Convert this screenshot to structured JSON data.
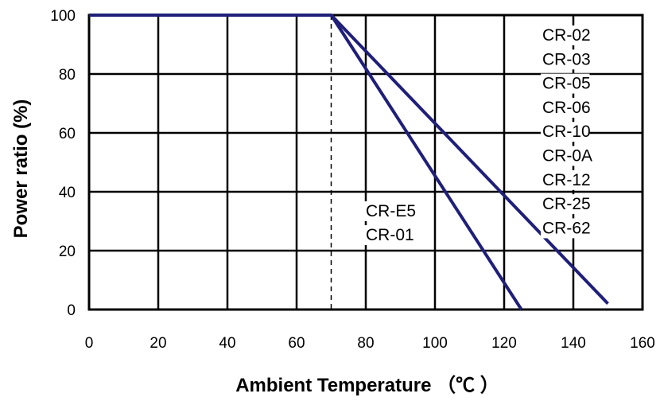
{
  "chart_data": {
    "type": "line",
    "title": "",
    "xlabel": "Ambient Temperature （℃ ）",
    "ylabel": "Power ratio (%)",
    "xlim": [
      0,
      160
    ],
    "ylim": [
      0,
      100
    ],
    "xticks": [
      "0",
      "20",
      "40",
      "60",
      "80",
      "100",
      "120",
      "140",
      "160"
    ],
    "yticks": [
      "0",
      "20",
      "40",
      "60",
      "80",
      "100"
    ],
    "grid": true,
    "reference_line": {
      "x": 70,
      "style": "dashed"
    },
    "series": [
      {
        "labels": [
          "CR-E5",
          "CR-01"
        ],
        "x": [
          0,
          70,
          125
        ],
        "y": [
          100,
          100,
          0
        ]
      },
      {
        "labels": [
          "CR-02",
          "CR-03",
          "CR-05",
          "CR-06",
          "CR-10",
          "CR-0A",
          "CR-12",
          "CR-25",
          "CR-62"
        ],
        "x": [
          0,
          70,
          150
        ],
        "y": [
          100,
          100,
          2
        ]
      }
    ],
    "line_color": "#1f1f7a"
  }
}
